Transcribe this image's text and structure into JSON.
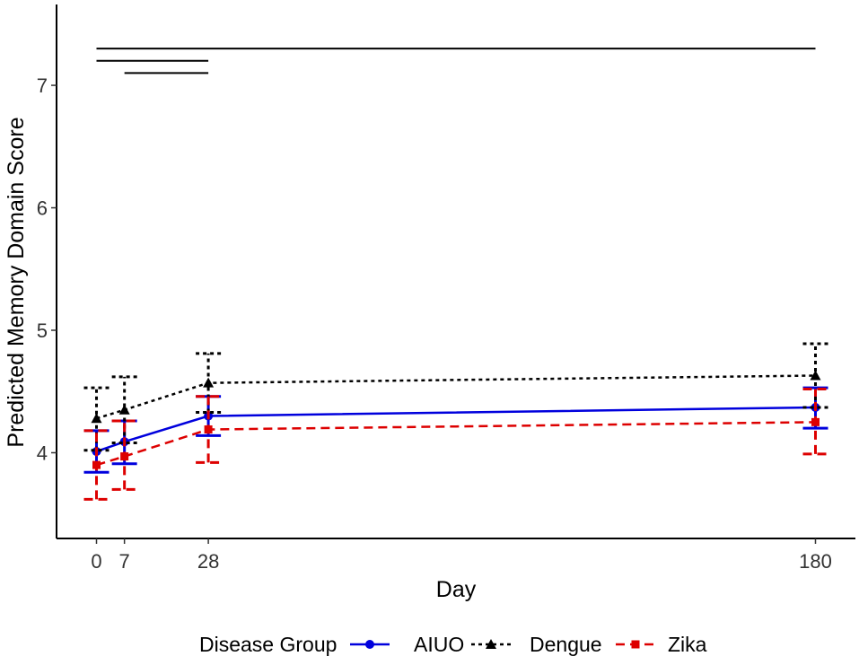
{
  "chart_data": {
    "type": "line",
    "title": "",
    "xlabel": "Day",
    "ylabel": "Predicted Memory Domain Score",
    "x": [
      0,
      7,
      28,
      180
    ],
    "xticks": [
      "0",
      "7",
      "28",
      "180"
    ],
    "yticks": [
      "4",
      "5",
      "6",
      "7"
    ],
    "xlim": [
      -10,
      190
    ],
    "ylim": [
      3.3,
      7.66
    ],
    "legend_title": "Disease Group",
    "legend_position": "bottom",
    "series": [
      {
        "name": "AIUO",
        "color": "#0000dd",
        "linestyle": "solid",
        "marker": "circle",
        "values": [
          4.01,
          4.09,
          4.3,
          4.37
        ],
        "lower": [
          3.84,
          3.91,
          4.14,
          4.2
        ],
        "upper": [
          4.18,
          4.26,
          4.46,
          4.53
        ]
      },
      {
        "name": "Dengue",
        "color": "#000000",
        "linestyle": "dotted",
        "marker": "triangle",
        "values": [
          4.28,
          4.35,
          4.57,
          4.63
        ],
        "lower": [
          4.02,
          4.08,
          4.33,
          4.37
        ],
        "upper": [
          4.53,
          4.62,
          4.81,
          4.89
        ]
      },
      {
        "name": "Zika",
        "color": "#dd0000",
        "linestyle": "dashed",
        "marker": "square",
        "values": [
          3.9,
          3.97,
          4.19,
          4.25
        ],
        "lower": [
          3.62,
          3.7,
          3.92,
          3.99
        ],
        "upper": [
          4.18,
          4.26,
          4.46,
          4.52
        ]
      }
    ],
    "significance_bars": [
      {
        "x_start": 0,
        "x_end": 180,
        "y": 7.3
      },
      {
        "x_start": 0,
        "x_end": 28,
        "y": 7.2
      },
      {
        "x_start": 7,
        "x_end": 28,
        "y": 7.1
      }
    ]
  }
}
